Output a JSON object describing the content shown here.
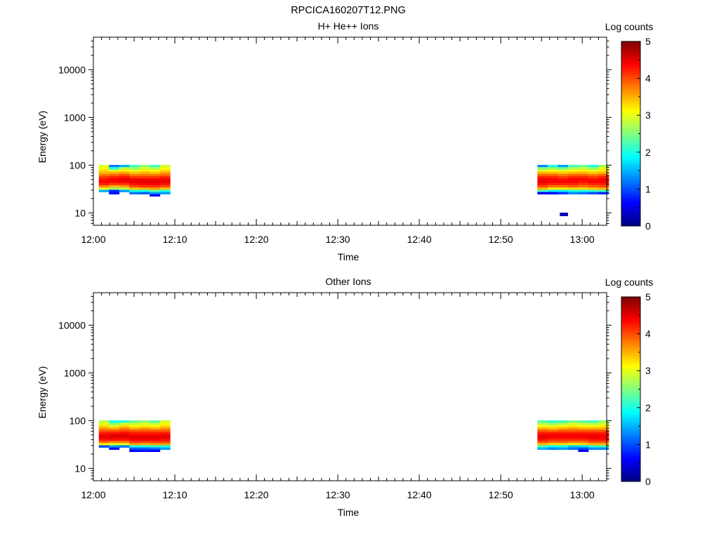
{
  "figure": {
    "title": "RPCICA160207T12.PNG"
  },
  "chart_data": [
    {
      "type": "heatmap",
      "title": "H+ He++ Ions",
      "xlabel": "Time",
      "ylabel": "Energy (eV)",
      "colorbar_label": "Log counts",
      "xlim": [
        "12:00",
        "13:03"
      ],
      "xticks": [
        "12:00",
        "12:10",
        "12:20",
        "12:30",
        "12:40",
        "12:50",
        "13:00"
      ],
      "ylim": [
        5.5,
        48000
      ],
      "yscale": "log",
      "yticks": [
        "10",
        "100",
        "1000",
        "10000"
      ],
      "clim": [
        0,
        5
      ],
      "cticks": [
        "0",
        "1",
        "2",
        "3",
        "4",
        "5"
      ],
      "colormap": "jet",
      "energy_bins": [
        96,
        86,
        77,
        69,
        62,
        56,
        50,
        45,
        40,
        36,
        32,
        29,
        26,
        23.5
      ],
      "blocks": [
        {
          "start": "12:00:40",
          "step_seconds": 75,
          "columns": [
            [
              3.0,
              3.1,
              3.3,
              3.5,
              3.8,
              4.1,
              4.3,
              4.4,
              4.2,
              3.7,
              3.0,
              1.5,
              null,
              null
            ],
            [
              1.2,
              2.0,
              3.0,
              3.5,
              3.9,
              4.2,
              4.4,
              4.4,
              4.1,
              3.5,
              2.6,
              0.8,
              0.7,
              null
            ],
            [
              1.5,
              2.8,
              3.2,
              3.6,
              4.0,
              4.3,
              4.5,
              4.4,
              4.1,
              3.6,
              2.8,
              1.4,
              null,
              null
            ],
            [
              2.2,
              2.6,
              3.0,
              3.4,
              3.8,
              4.1,
              4.4,
              4.5,
              4.3,
              4.0,
              3.4,
              2.0,
              1.2,
              null
            ],
            [
              2.6,
              2.9,
              3.2,
              3.5,
              3.8,
              4.1,
              4.4,
              4.5,
              4.4,
              4.1,
              3.5,
              2.0,
              1.1,
              null
            ],
            [
              2.2,
              2.7,
              3.1,
              3.4,
              3.8,
              4.1,
              4.4,
              4.5,
              4.4,
              4.1,
              3.6,
              2.3,
              1.4,
              0.6
            ],
            [
              2.9,
              3.1,
              3.3,
              3.6,
              3.9,
              4.2,
              4.4,
              4.5,
              4.3,
              4.0,
              3.4,
              2.0,
              1.4,
              null
            ]
          ]
        },
        {
          "start": "12:54:30",
          "step_seconds": 75,
          "columns": [
            [
              1.3,
              2.5,
              3.0,
              3.5,
              3.9,
              4.2,
              4.4,
              4.5,
              4.3,
              4.0,
              3.5,
              2.2,
              0.6,
              null
            ],
            [
              2.0,
              2.6,
              3.1,
              3.5,
              3.9,
              4.2,
              4.4,
              4.4,
              4.2,
              3.8,
              3.2,
              1.8,
              0.7,
              null
            ],
            [
              1.4,
              2.4,
              3.0,
              3.4,
              3.8,
              4.1,
              4.3,
              4.4,
              4.2,
              3.8,
              3.2,
              1.8,
              0.9,
              null
            ],
            [
              2.2,
              2.7,
              3.1,
              3.5,
              3.9,
              4.2,
              4.4,
              4.4,
              4.2,
              3.9,
              3.3,
              2.0,
              1.3,
              null
            ],
            [
              2.4,
              2.8,
              3.2,
              3.5,
              3.9,
              4.2,
              4.4,
              4.3,
              4.1,
              3.8,
              3.3,
              2.0,
              1.2,
              null
            ],
            [
              2.0,
              2.6,
              3.0,
              3.4,
              3.8,
              4.1,
              4.3,
              4.4,
              4.2,
              3.9,
              3.4,
              2.1,
              1.0,
              null
            ],
            [
              2.7,
              3.0,
              3.2,
              3.5,
              3.9,
              4.2,
              4.4,
              4.4,
              4.2,
              4.0,
              3.5,
              2.2,
              0.8,
              null
            ]
          ]
        }
      ],
      "isolated_cells": [
        {
          "time": "12:57:45",
          "energy": 9.3,
          "value": 0.3
        }
      ]
    },
    {
      "type": "heatmap",
      "title": "Other Ions",
      "xlabel": "Time",
      "ylabel": "Energy (eV)",
      "colorbar_label": "Log counts",
      "xlim": [
        "12:00",
        "13:03"
      ],
      "xticks": [
        "12:00",
        "12:10",
        "12:20",
        "12:30",
        "12:40",
        "12:50",
        "13:00"
      ],
      "ylim": [
        5.5,
        48000
      ],
      "yscale": "log",
      "yticks": [
        "10",
        "100",
        "1000",
        "10000"
      ],
      "clim": [
        0,
        5
      ],
      "cticks": [
        "0",
        "1",
        "2",
        "3",
        "4",
        "5"
      ],
      "colormap": "jet",
      "energy_bins": [
        96,
        86,
        77,
        69,
        62,
        56,
        50,
        45,
        40,
        36,
        32,
        29,
        26,
        23.5
      ],
      "blocks": [
        {
          "start": "12:00:40",
          "step_seconds": 75,
          "columns": [
            [
              2.8,
              3.0,
              3.3,
              3.6,
              3.9,
              4.2,
              4.4,
              4.5,
              4.3,
              3.9,
              3.2,
              1.0,
              null,
              null
            ],
            [
              2.0,
              2.5,
              3.0,
              3.5,
              3.9,
              4.2,
              4.5,
              4.5,
              4.3,
              3.8,
              3.0,
              1.4,
              0.7,
              null
            ],
            [
              2.0,
              2.9,
              3.3,
              3.7,
              4.0,
              4.3,
              4.5,
              4.5,
              4.3,
              3.8,
              3.0,
              1.2,
              null,
              null
            ],
            [
              2.4,
              2.8,
              3.1,
              3.5,
              3.9,
              4.2,
              4.4,
              4.5,
              4.4,
              4.1,
              3.6,
              2.0,
              1.1,
              0.6
            ],
            [
              2.6,
              2.9,
              3.2,
              3.6,
              3.9,
              4.2,
              4.4,
              4.5,
              4.4,
              4.1,
              3.5,
              2.0,
              1.1,
              0.7
            ],
            [
              2.3,
              2.8,
              3.1,
              3.5,
              3.9,
              4.2,
              4.4,
              4.5,
              4.4,
              4.1,
              3.6,
              2.1,
              1.2,
              0.6
            ],
            [
              2.9,
              3.1,
              3.3,
              3.6,
              3.9,
              4.2,
              4.4,
              4.5,
              4.3,
              4.1,
              3.6,
              2.0,
              1.4,
              null
            ]
          ]
        },
        {
          "start": "12:54:30",
          "step_seconds": 75,
          "columns": [
            [
              2.3,
              2.7,
              3.1,
              3.5,
              3.9,
              4.2,
              4.4,
              4.5,
              4.3,
              4.0,
              3.5,
              2.2,
              1.5,
              null
            ],
            [
              2.1,
              2.6,
              3.0,
              3.4,
              3.8,
              4.2,
              4.4,
              4.4,
              4.2,
              3.9,
              3.3,
              1.9,
              1.3,
              null
            ],
            [
              2.2,
              2.7,
              3.1,
              3.5,
              3.9,
              4.2,
              4.4,
              4.4,
              4.2,
              3.9,
              3.3,
              2.0,
              1.4,
              null
            ],
            [
              2.5,
              2.9,
              3.2,
              3.6,
              3.9,
              4.2,
              4.4,
              4.4,
              4.2,
              3.8,
              3.2,
              1.6,
              1.2,
              null
            ],
            [
              2.3,
              2.8,
              3.1,
              3.5,
              3.9,
              4.2,
              4.4,
              4.4,
              4.2,
              3.8,
              3.3,
              1.7,
              1.0,
              0.6
            ],
            [
              2.2,
              2.7,
              3.1,
              3.5,
              3.9,
              4.2,
              4.4,
              4.5,
              4.3,
              4.0,
              3.5,
              2.1,
              1.3,
              null
            ],
            [
              2.6,
              2.9,
              3.2,
              3.5,
              3.9,
              4.2,
              4.4,
              4.4,
              4.3,
              4.0,
              3.5,
              2.2,
              1.3,
              null
            ]
          ]
        }
      ],
      "isolated_cells": []
    }
  ]
}
